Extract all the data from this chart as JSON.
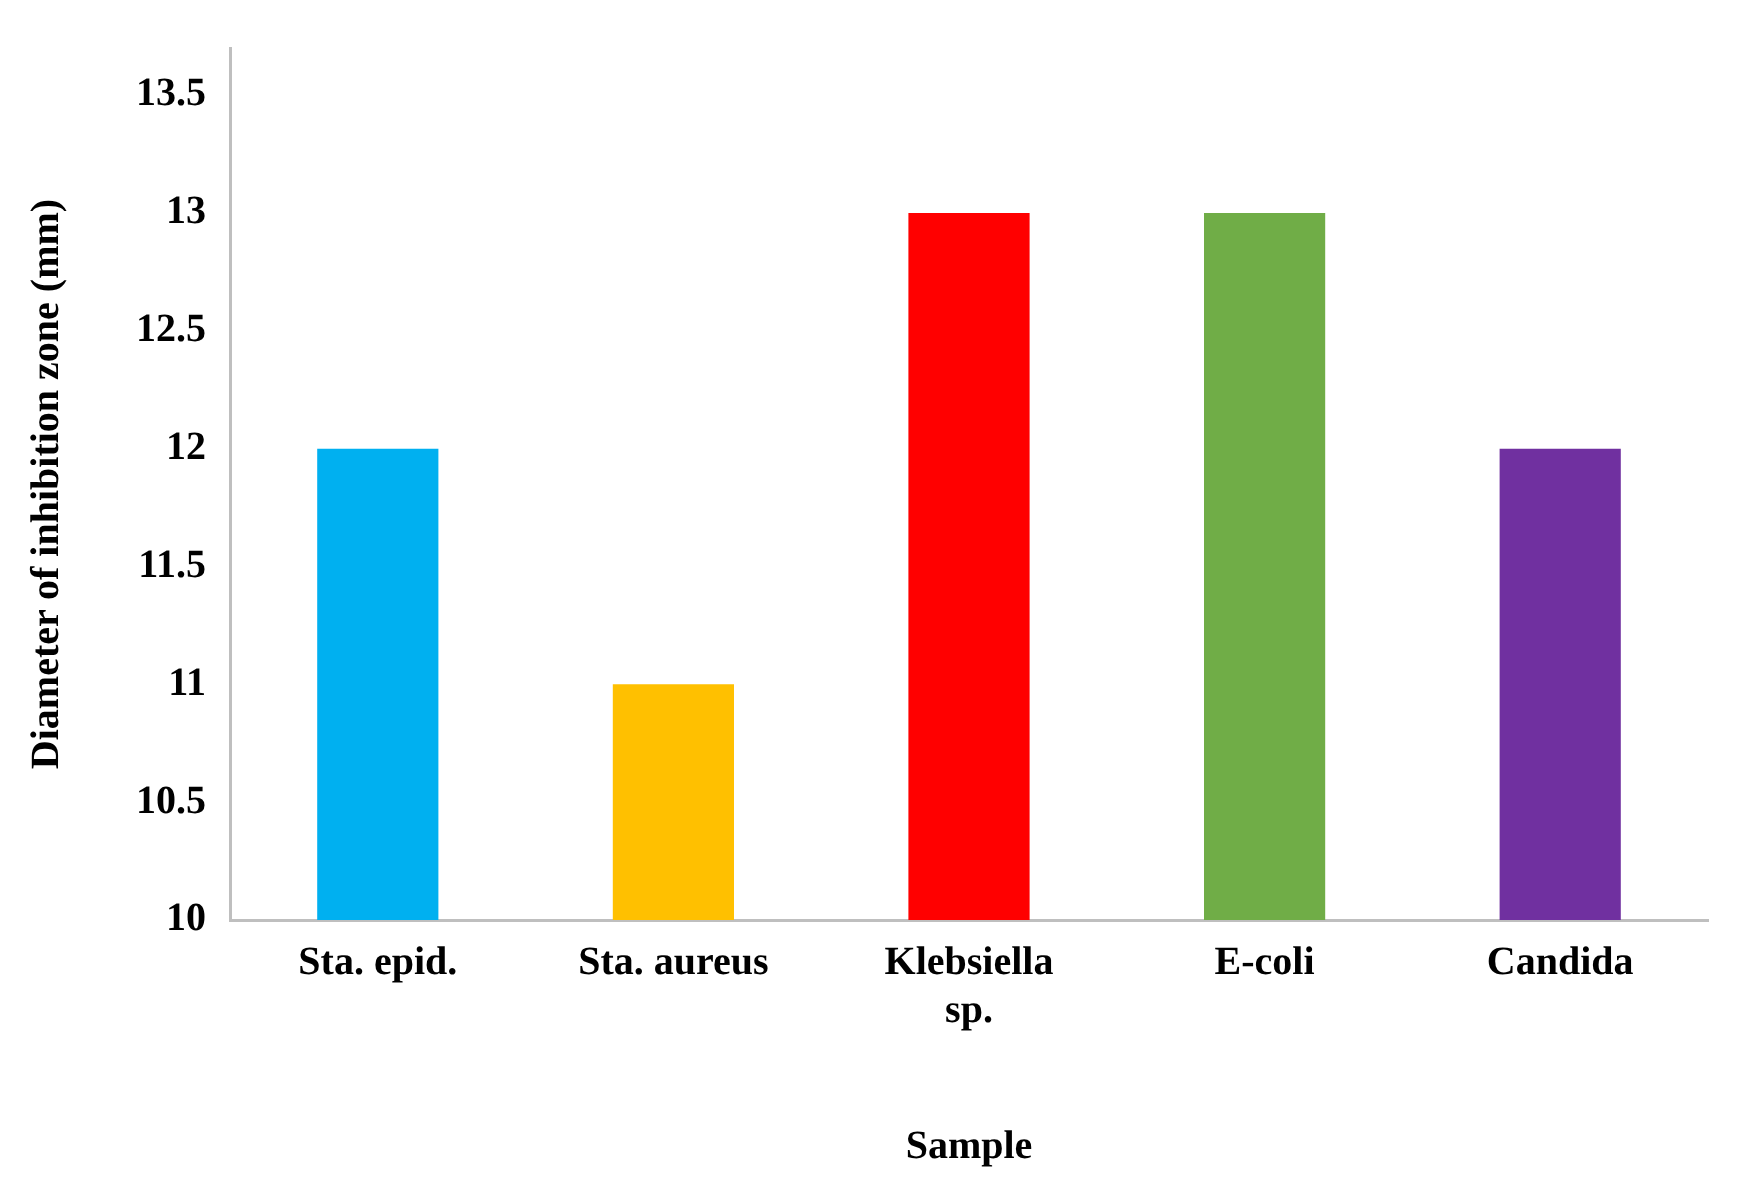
{
  "chart_data": {
    "type": "bar",
    "xlabel": "Sample",
    "ylabel": "Diameter of inhibition zone (mm)",
    "categories": [
      "Sta. epid.",
      "Sta. aureus",
      "Klebsiella sp.",
      "E-coli",
      "Candida"
    ],
    "values": [
      12,
      11,
      13,
      13,
      12
    ],
    "colors": [
      "#00b0f0",
      "#ffc000",
      "#ff0000",
      "#70ad47",
      "#7030a0"
    ],
    "ylim": [
      10,
      13.7
    ],
    "yticks": [
      10,
      10.5,
      11,
      11.5,
      12,
      12.5,
      13,
      13.5
    ],
    "grid": false,
    "legend": false
  }
}
